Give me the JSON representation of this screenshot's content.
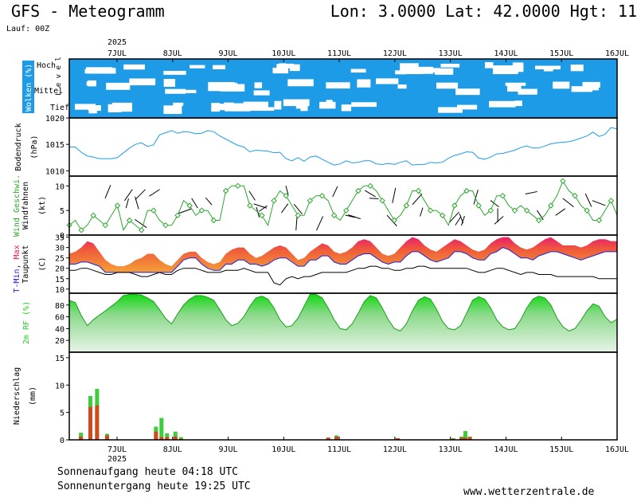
{
  "header": {
    "title": "GFS - Meteogramm",
    "coords": "Lon: 3.0000 Lat: 42.0000 Hgt: 11",
    "run": "Lauf: 00Z"
  },
  "footer": {
    "sunrise": "Sonnenaufgang heute 04:18 UTC",
    "sunset": "Sonnenuntergang heute 19:25 UTC",
    "source": "www.wetterzentrale.de"
  },
  "colors": {
    "cloud": "#1e9be6",
    "pressure": "#1e9be6",
    "wind_speed": "#2aa82a",
    "temp_max": "#e8204a",
    "temp_min": "#2020e0",
    "temp_band": "#f08a2a",
    "humidity": "#26d026",
    "precip_conv": "#3ccc3c",
    "precip_large": "#d04a20"
  },
  "chart_data": {
    "type": "line",
    "x_year": "2025",
    "x_ticks": [
      "7JUL",
      "8JUL",
      "9JUL",
      "10JUL",
      "11JUL",
      "12JUL",
      "13JUL",
      "14JUL",
      "15JUL",
      "16JUL"
    ],
    "panels": [
      {
        "id": "clouds",
        "type": "heatmap",
        "ylabel": "Wolken (%)",
        "levels_label": "L e v e l",
        "levels": [
          "Hoch",
          "Mittel",
          "Tief"
        ]
      },
      {
        "id": "pressure",
        "type": "line",
        "ylabel": "Bodendruck",
        "unit": "(hPa)",
        "yticks": [
          1010,
          1015,
          1020
        ],
        "ylim": [
          1009,
          1020
        ],
        "series": [
          {
            "values": [
              1014.5,
              1014.5,
              1013.5,
              1012.8,
              1012.6,
              1012.3,
              1012.3,
              1012.3,
              1012.5,
              1013.4,
              1014.3,
              1015,
              1015.3,
              1014.6,
              1014.9,
              1016.8,
              1017.2,
              1017.6,
              1017.1,
              1017.4,
              1017.3,
              1017,
              1017.1,
              1017.6,
              1017.4,
              1016.6,
              1016,
              1015.4,
              1014.8,
              1014.5,
              1013.6,
              1013.9,
              1013.8,
              1013.7,
              1013.4,
              1013.5,
              1012.3,
              1011.9,
              1012.5,
              1011.8,
              1012.6,
              1012.8,
              1012.2,
              1011.6,
              1011.1,
              1011.3,
              1011.9,
              1011.5,
              1011.6,
              1011.9,
              1011.9,
              1011.3,
              1011.2,
              1011.4,
              1011.2,
              1011.6,
              1011.9,
              1011.1,
              1011.2,
              1011.2,
              1011.6,
              1011.5,
              1011.6,
              1012.4,
              1012.9,
              1013.2,
              1013.6,
              1013.5,
              1012.4,
              1012.2,
              1012.6,
              1013.2,
              1013.3,
              1013.6,
              1013.9,
              1014.4,
              1014.7,
              1014.3,
              1014.3,
              1014.7,
              1015.1,
              1015.3,
              1015.4,
              1015.5,
              1015.8,
              1016.2,
              1016.6,
              1017.3,
              1016.5,
              1016.9,
              1018.2,
              1017.9
            ]
          }
        ]
      },
      {
        "id": "wind",
        "type": "line",
        "ylabel": "Wind Geschwi.",
        "ylabel2": "Windfahnen",
        "unit": "(kt)",
        "yticks": [
          0,
          5,
          10
        ],
        "ylim": [
          0,
          12
        ],
        "series": [
          {
            "name": "Wind Geschwi.",
            "values": [
              2,
              3,
              1,
              2,
              4,
              3,
              2,
              4,
              6,
              1,
              3,
              2,
              1,
              5,
              5,
              3,
              2,
              2,
              4,
              7,
              6,
              4,
              5,
              5,
              3,
              3,
              9,
              10,
              10,
              10,
              6,
              5,
              4,
              2,
              7,
              9,
              8,
              6,
              4,
              4,
              7,
              8,
              8,
              7,
              4,
              3,
              5,
              7,
              9,
              10,
              10,
              9,
              7,
              5,
              3,
              4,
              6,
              9,
              9,
              7,
              5,
              5,
              4,
              2,
              6,
              8,
              9,
              9,
              6,
              4,
              5,
              8,
              8,
              6,
              5,
              6,
              5,
              4,
              3,
              4,
              6,
              8,
              11,
              9,
              8,
              6,
              5,
              3,
              3,
              5,
              7,
              4
            ]
          }
        ]
      },
      {
        "id": "temperature",
        "type": "area",
        "ylabel_parts": [
          "T-Min",
          "Max"
        ],
        "ylabel2": "Taupunkt",
        "unit": "(C)",
        "yticks": [
          10,
          15,
          20,
          25,
          30,
          35
        ],
        "ylim": [
          8,
          36
        ],
        "series": [
          {
            "name": "T-Min",
            "values": [
              22,
              22,
              23,
              23,
              22,
              21,
              18,
              18,
              18,
              18,
              18,
              18,
              18,
              18,
              18,
              18,
              18,
              18,
              21,
              24,
              25,
              25,
              22,
              20,
              19,
              19,
              22,
              22,
              24,
              24,
              22,
              22,
              21,
              22,
              24,
              25,
              25,
              23,
              21,
              21,
              24,
              24,
              26,
              26,
              23,
              22,
              22,
              24,
              26,
              27,
              27,
              25,
              23,
              22,
              23,
              23,
              26,
              28,
              28,
              26,
              24,
              23,
              24,
              25,
              28,
              28,
              27,
              25,
              24,
              24,
              27,
              28,
              30,
              29,
              27,
              25,
              25,
              24,
              26,
              27,
              28,
              28,
              27,
              26,
              25,
              24,
              25,
              26,
              27,
              28,
              28,
              28
            ]
          },
          {
            "name": "Max",
            "values": [
              27,
              28,
              30,
              33,
              32,
              28,
              24,
              22,
              21,
              21,
              22,
              24,
              25,
              27,
              27,
              24,
              22,
              21,
              24,
              27,
              28,
              28,
              25,
              23,
              22,
              23,
              27,
              29,
              30,
              30,
              27,
              25,
              26,
              28,
              30,
              31,
              30,
              27,
              24,
              25,
              28,
              30,
              32,
              31,
              28,
              27,
              28,
              30,
              33,
              34,
              33,
              30,
              27,
              26,
              27,
              30,
              33,
              35,
              34,
              31,
              29,
              28,
              30,
              32,
              34,
              33,
              31,
              29,
              28,
              29,
              32,
              34,
              35,
              35,
              32,
              30,
              29,
              30,
              32,
              34,
              35,
              33,
              31,
              31,
              31,
              30,
              31,
              33,
              34,
              34,
              33,
              33
            ]
          },
          {
            "name": "Taupunkt",
            "values": [
              19,
              19,
              20,
              20,
              19,
              18,
              17,
              17,
              18,
              18,
              18,
              17,
              16,
              16,
              17,
              18,
              17,
              17,
              19,
              20,
              20,
              20,
              19,
              18,
              18,
              18,
              19,
              19,
              19,
              20,
              19,
              18,
              18,
              18,
              13,
              12,
              15,
              16,
              15,
              16,
              16,
              17,
              18,
              18,
              18,
              18,
              18,
              19,
              20,
              20,
              21,
              21,
              20,
              20,
              19,
              19,
              20,
              20,
              21,
              21,
              20,
              20,
              20,
              20,
              20,
              20,
              20,
              19,
              18,
              18,
              19,
              20,
              20,
              19,
              18,
              17,
              18,
              18,
              17,
              17,
              17,
              16,
              16,
              16,
              16,
              16,
              16,
              16,
              15,
              15,
              15,
              15
            ]
          }
        ]
      },
      {
        "id": "humidity",
        "type": "area",
        "ylabel": "2m RF (%)",
        "yticks": [
          20,
          40,
          60,
          80
        ],
        "ylim": [
          0,
          100
        ],
        "series": [
          {
            "name": "2m RF",
            "values": [
              88,
              84,
              62,
              45,
              55,
              63,
              70,
              78,
              86,
              96,
              98,
              98,
              97,
              92,
              86,
              72,
              57,
              48,
              65,
              80,
              90,
              96,
              96,
              93,
              88,
              72,
              55,
              45,
              49,
              60,
              78,
              92,
              95,
              90,
              75,
              55,
              43,
              45,
              58,
              78,
              98,
              98,
              92,
              75,
              55,
              40,
              38,
              48,
              66,
              86,
              96,
              92,
              75,
              55,
              40,
              36,
              48,
              70,
              88,
              94,
              90,
              73,
              52,
              40,
              38,
              45,
              66,
              88,
              94,
              90,
              75,
              55,
              43,
              38,
              40,
              55,
              75,
              90,
              95,
              92,
              80,
              58,
              43,
              36,
              40,
              54,
              70,
              82,
              78,
              60,
              50,
              56
            ]
          }
        ]
      },
      {
        "id": "precip",
        "type": "bar",
        "ylabel": "Niederschlag",
        "unit": "(mm)",
        "yticks": [
          0,
          5,
          10,
          15
        ],
        "ylim": [
          0,
          16
        ],
        "series": [
          {
            "name": "Niederschlag",
            "values": [
              {
                "x": 6.35,
                "c": 1.3,
                "l": 0.6
              },
              {
                "x": 6.52,
                "c": 8.0,
                "l": 6.0
              },
              {
                "x": 6.64,
                "c": 9.3,
                "l": 6.3
              },
              {
                "x": 6.82,
                "c": 1.1,
                "l": 0.8
              },
              {
                "x": 7.7,
                "c": 2.4,
                "l": 1.5
              },
              {
                "x": 7.8,
                "c": 4.0,
                "l": 0.5
              },
              {
                "x": 7.9,
                "c": 1.2,
                "l": 0.5
              },
              {
                "x": 8.05,
                "c": 1.5,
                "l": 0.6
              },
              {
                "x": 8.15,
                "c": 0.5,
                "l": 0.2
              },
              {
                "x": 10.8,
                "c": 0.4,
                "l": 0.4
              },
              {
                "x": 10.95,
                "c": 0.8,
                "l": 0.6
              },
              {
                "x": 12.05,
                "c": 0.3,
                "l": 0.3
              },
              {
                "x": 13.05,
                "c": 0.3,
                "l": 0.2
              },
              {
                "x": 13.2,
                "c": 0.6,
                "l": 0.4
              },
              {
                "x": 13.27,
                "c": 1.6,
                "l": 0.4
              },
              {
                "x": 13.35,
                "c": 0.6,
                "l": 0.5
              }
            ]
          }
        ]
      }
    ]
  }
}
